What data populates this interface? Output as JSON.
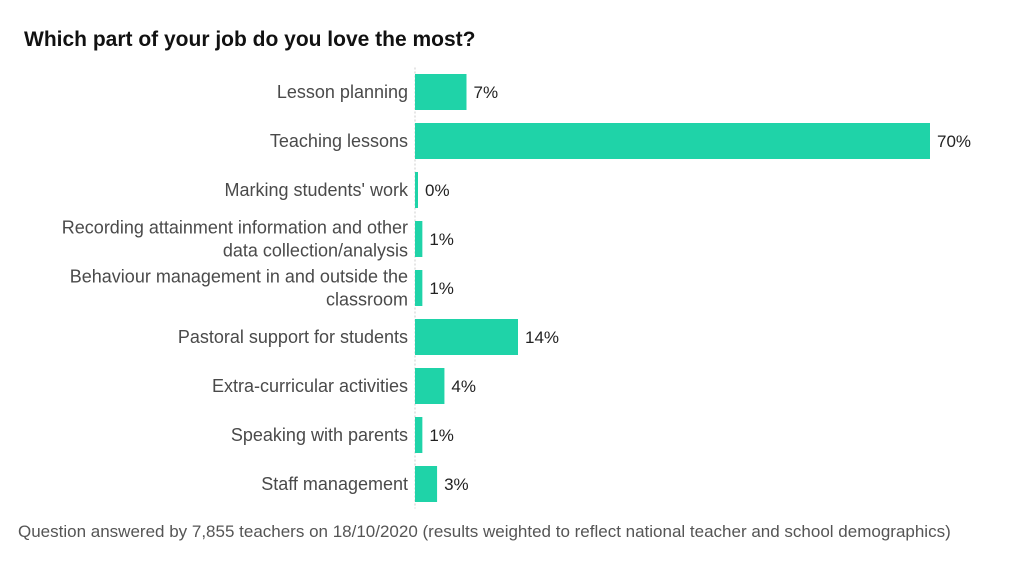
{
  "chart_data": {
    "type": "bar",
    "orientation": "horizontal",
    "title": "Which part of your job do you love the most?",
    "categories": [
      [
        "Lesson planning"
      ],
      [
        "Teaching lessons"
      ],
      [
        "Marking students' work"
      ],
      [
        "Recording attainment information and other",
        "data collection/analysis"
      ],
      [
        "Behaviour management in and outside the",
        "classroom"
      ],
      [
        "Pastoral support for students"
      ],
      [
        "Extra-curricular activities"
      ],
      [
        "Speaking with parents"
      ],
      [
        "Staff management"
      ]
    ],
    "values": [
      7,
      70,
      0,
      1,
      1,
      14,
      4,
      1,
      3
    ],
    "value_labels": [
      "7%",
      "70%",
      "0%",
      "1%",
      "1%",
      "14%",
      "4%",
      "1%",
      "3%"
    ],
    "xlim": [
      0,
      70
    ],
    "grid": false,
    "bar_color": "#1fd3a8"
  },
  "footnote": "Question answered by 7,855 teachers on 18/10/2020 (results weighted to reflect national teacher and school demographics)"
}
